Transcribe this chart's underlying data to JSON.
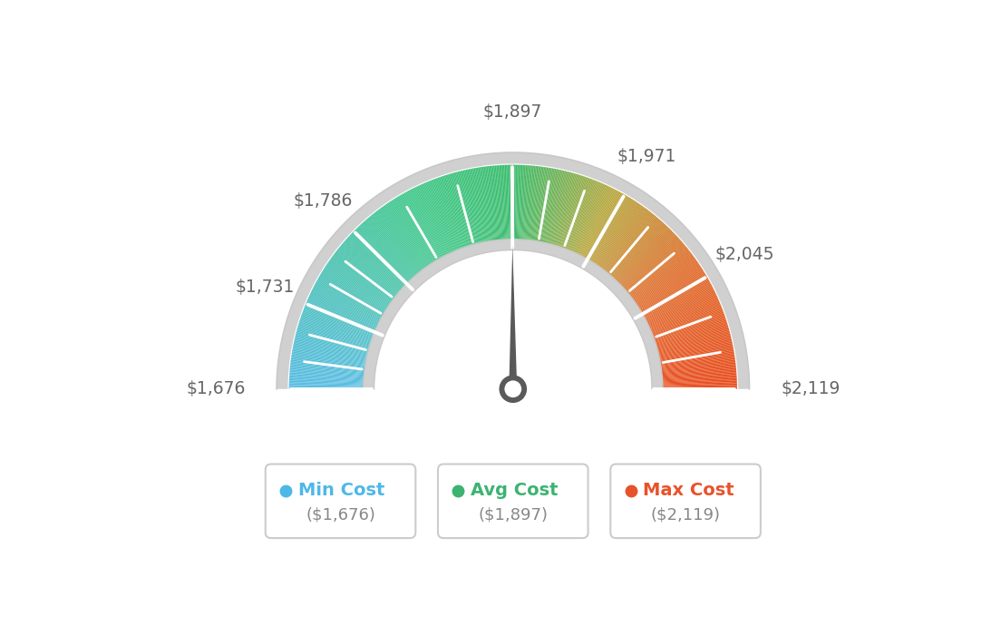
{
  "min_val": 1676,
  "max_val": 2119,
  "avg_val": 1897,
  "tick_labels": [
    "$1,676",
    "$1,731",
    "$1,786",
    "$1,897",
    "$1,971",
    "$2,045",
    "$2,119"
  ],
  "tick_values": [
    1676,
    1731,
    1786,
    1897,
    1971,
    2045,
    2119
  ],
  "legend": [
    {
      "label": "Min Cost",
      "value": "($1,676)",
      "color": "#4db8e8"
    },
    {
      "label": "Avg Cost",
      "value": "($1,897)",
      "color": "#3cb371"
    },
    {
      "label": "Max Cost",
      "value": "($2,119)",
      "color": "#e8522a"
    }
  ],
  "bg_color": "#ffffff",
  "color_stops": [
    [
      0.0,
      "#5bbde4"
    ],
    [
      0.35,
      "#42c88a"
    ],
    [
      0.5,
      "#3dbd6e"
    ],
    [
      0.65,
      "#b8a840"
    ],
    [
      0.8,
      "#e07030"
    ],
    [
      1.0,
      "#e84e20"
    ]
  ],
  "needle_color": "#595959",
  "hub_color": "#5a5a5a",
  "inner_arc_color": "#d8d8d8",
  "outer_arc_color": "#d0d0d0",
  "text_color": "#666666"
}
